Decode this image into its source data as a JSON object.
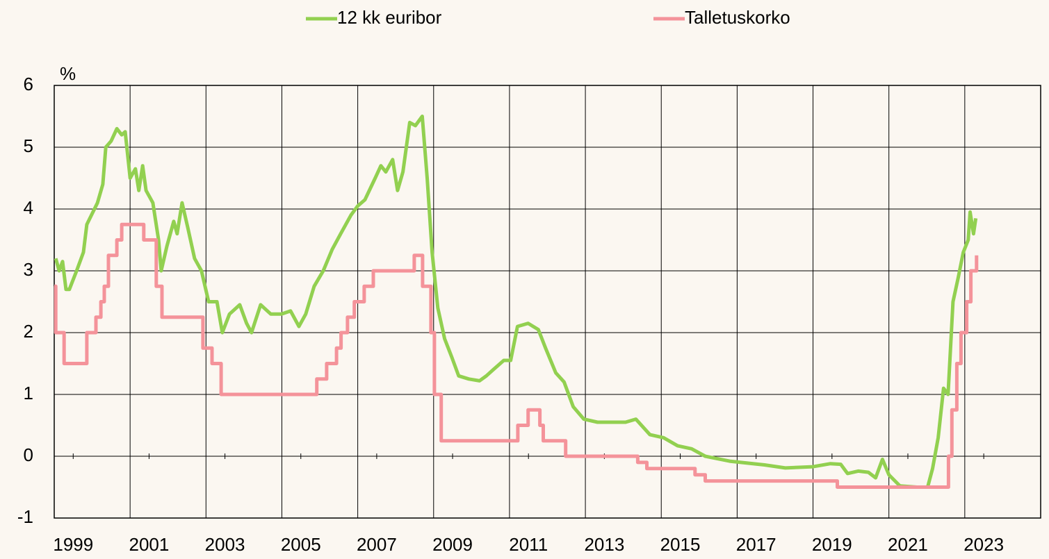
{
  "chart_data": {
    "type": "line",
    "ylabel": "%",
    "xlim": [
      1999,
      2025
    ],
    "ylim": [
      -1,
      6
    ],
    "yticks": [
      -1,
      0,
      1,
      2,
      3,
      4,
      5,
      6
    ],
    "xticks": [
      {
        "value": 1999.5,
        "label": "1999"
      },
      {
        "value": 2001.5,
        "label": "2001"
      },
      {
        "value": 2003.5,
        "label": "2003"
      },
      {
        "value": 2005.5,
        "label": "2005"
      },
      {
        "value": 2007.5,
        "label": "2007"
      },
      {
        "value": 2009.5,
        "label": "2009"
      },
      {
        "value": 2011.5,
        "label": "2011"
      },
      {
        "value": 2013.5,
        "label": "2013"
      },
      {
        "value": 2015.5,
        "label": "2015"
      },
      {
        "value": 2017.5,
        "label": "2017"
      },
      {
        "value": 2019.5,
        "label": "2019"
      },
      {
        "value": 2021.5,
        "label": "2021"
      },
      {
        "value": 2023.5,
        "label": "2023"
      }
    ],
    "xgrid": [
      2001,
      2003,
      2005,
      2007,
      2009,
      2011,
      2013,
      2015,
      2017,
      2019,
      2021,
      2023
    ],
    "ygrid": true,
    "legend": "top",
    "series": [
      {
        "name": "12 kk euribor",
        "color": "#92d050",
        "x": [
          1999.04,
          1999.13,
          1999.22,
          1999.31,
          1999.4,
          1999.59,
          1999.77,
          1999.86,
          2000.14,
          2000.28,
          2000.36,
          2000.5,
          2000.65,
          2000.78,
          2000.87,
          2001.0,
          2001.14,
          2001.23,
          2001.33,
          2001.42,
          2001.6,
          2001.75,
          2001.82,
          2001.97,
          2002.15,
          2002.24,
          2002.37,
          2002.52,
          2002.7,
          2002.88,
          2003.07,
          2003.29,
          2003.43,
          2003.62,
          2003.89,
          2004.07,
          2004.2,
          2004.44,
          2004.71,
          2004.99,
          2005.23,
          2005.45,
          2005.63,
          2005.85,
          2006.09,
          2006.33,
          2006.55,
          2006.82,
          2007.0,
          2007.19,
          2007.46,
          2007.61,
          2007.74,
          2007.92,
          2008.05,
          2008.19,
          2008.37,
          2008.52,
          2008.7,
          2008.83,
          2008.96,
          2009.11,
          2009.29,
          2009.48,
          2009.66,
          2009.93,
          2010.21,
          2010.39,
          2010.57,
          2010.85,
          2011.03,
          2011.21,
          2011.49,
          2011.76,
          2011.95,
          2012.22,
          2012.44,
          2012.68,
          2012.96,
          2013.32,
          2013.69,
          2014.06,
          2014.33,
          2014.7,
          2015.06,
          2015.43,
          2015.8,
          2016.16,
          2016.8,
          2017.72,
          2018.27,
          2019.0,
          2019.46,
          2019.73,
          2019.91,
          2020.19,
          2020.46,
          2020.65,
          2020.83,
          2021.0,
          2021.29,
          2021.74,
          2022.02,
          2022.15,
          2022.3,
          2022.44,
          2022.56,
          2022.69,
          2022.83,
          2022.96,
          2023.09,
          2023.14,
          2023.23,
          2023.29
        ],
        "values": [
          3.2,
          3.0,
          3.15,
          2.7,
          2.7,
          3.0,
          3.3,
          3.75,
          4.1,
          4.4,
          5.0,
          5.1,
          5.3,
          5.2,
          5.25,
          4.5,
          4.65,
          4.3,
          4.7,
          4.3,
          4.1,
          3.5,
          3.0,
          3.4,
          3.8,
          3.6,
          4.1,
          3.7,
          3.2,
          3.0,
          2.5,
          2.5,
          2.0,
          2.3,
          2.45,
          2.15,
          2.0,
          2.45,
          2.3,
          2.3,
          2.35,
          2.1,
          2.3,
          2.75,
          3.0,
          3.35,
          3.6,
          3.9,
          4.05,
          4.15,
          4.5,
          4.7,
          4.6,
          4.8,
          4.3,
          4.6,
          5.4,
          5.35,
          5.5,
          4.5,
          3.3,
          2.4,
          1.9,
          1.6,
          1.3,
          1.25,
          1.22,
          1.3,
          1.4,
          1.55,
          1.55,
          2.1,
          2.15,
          2.05,
          1.75,
          1.35,
          1.2,
          0.8,
          0.6,
          0.55,
          0.55,
          0.55,
          0.6,
          0.35,
          0.3,
          0.17,
          0.12,
          0.0,
          -0.08,
          -0.14,
          -0.19,
          -0.17,
          -0.12,
          -0.13,
          -0.28,
          -0.24,
          -0.26,
          -0.35,
          -0.05,
          -0.3,
          -0.48,
          -0.5,
          -0.5,
          -0.2,
          0.3,
          1.1,
          1.0,
          2.5,
          2.9,
          3.3,
          3.5,
          3.95,
          3.6,
          3.85
        ]
      },
      {
        "name": "Talletuskorko",
        "color": "#f4939a",
        "x": [
          1999.0,
          1999.04,
          1999.04,
          1999.26,
          1999.26,
          1999.86,
          1999.86,
          2000.1,
          2000.1,
          2000.23,
          2000.23,
          2000.32,
          2000.32,
          2000.43,
          2000.43,
          2000.65,
          2000.65,
          2000.78,
          2000.78,
          2001.36,
          2001.36,
          2001.69,
          2001.69,
          2001.84,
          2001.84,
          2002.92,
          2002.92,
          2003.16,
          2003.16,
          2003.4,
          2003.4,
          2005.92,
          2005.92,
          2006.18,
          2006.18,
          2006.44,
          2006.44,
          2006.56,
          2006.56,
          2006.73,
          2006.73,
          2006.91,
          2006.91,
          2007.17,
          2007.17,
          2007.41,
          2007.41,
          2008.49,
          2008.49,
          2008.71,
          2008.71,
          2008.93,
          2008.93,
          2009.02,
          2009.02,
          2009.2,
          2009.2,
          2011.22,
          2011.22,
          2011.49,
          2011.49,
          2011.8,
          2011.8,
          2011.89,
          2011.89,
          2012.48,
          2012.48,
          2014.38,
          2014.38,
          2014.62,
          2014.62,
          2015.89,
          2015.89,
          2016.16,
          2016.16,
          2019.64,
          2019.64,
          2022.57,
          2022.57,
          2022.66,
          2022.66,
          2022.79,
          2022.79,
          2022.9,
          2022.9,
          2023.05,
          2023.05,
          2023.16,
          2023.16,
          2023.31,
          2023.31
        ],
        "values": [
          2.75,
          2.75,
          2.0,
          2.0,
          1.5,
          1.5,
          2.0,
          2.0,
          2.25,
          2.25,
          2.5,
          2.5,
          2.75,
          2.75,
          3.25,
          3.25,
          3.5,
          3.5,
          3.75,
          3.75,
          3.5,
          3.5,
          2.75,
          2.75,
          2.25,
          2.25,
          1.75,
          1.75,
          1.5,
          1.5,
          1.0,
          1.0,
          1.25,
          1.25,
          1.5,
          1.5,
          1.75,
          1.75,
          2.0,
          2.0,
          2.25,
          2.25,
          2.5,
          2.5,
          2.75,
          2.75,
          3.0,
          3.0,
          3.25,
          3.25,
          2.75,
          2.75,
          2.0,
          2.0,
          1.0,
          1.0,
          0.25,
          0.25,
          0.5,
          0.5,
          0.75,
          0.75,
          0.5,
          0.5,
          0.25,
          0.25,
          0.0,
          0.0,
          -0.1,
          -0.1,
          -0.2,
          -0.2,
          -0.3,
          -0.3,
          -0.4,
          -0.4,
          -0.5,
          -0.5,
          0.0,
          0.0,
          0.75,
          0.75,
          1.5,
          1.5,
          2.0,
          2.0,
          2.5,
          2.5,
          3.0,
          3.0,
          3.25
        ]
      }
    ]
  }
}
